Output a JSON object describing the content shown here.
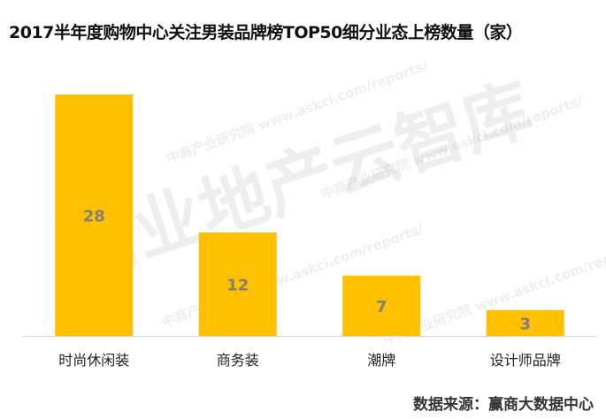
{
  "title": "2017半年度购物中心关注男装品牌榜TOP50细分业态上榜数量（家）",
  "source": "数据来源：赢商大数据中心",
  "watermark": {
    "big": "商业地产云智库",
    "small": "中商产业研究院 www.askci.com/reports/"
  },
  "colors": {
    "bar": "#FFC000",
    "label": "#7F7F7F",
    "axis": "#D9D9D9"
  },
  "chart_data": {
    "type": "bar",
    "title": "2017半年度购物中心关注男装品牌榜TOP50细分业态上榜数量（家）",
    "categories": [
      "时尚休闲装",
      "商务装",
      "潮牌",
      "设计师品牌"
    ],
    "values": [
      28,
      12,
      7,
      3
    ],
    "ylim": [
      0,
      30
    ],
    "grid": false,
    "legend": "none",
    "data_labels": true
  }
}
